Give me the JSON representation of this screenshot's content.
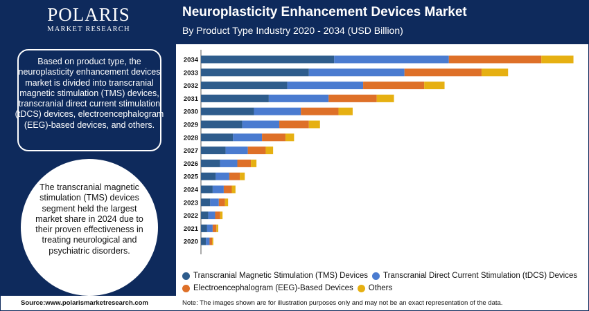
{
  "header": {
    "logo_name": "POLARIS",
    "logo_sub": "MARKET RESEARCH",
    "title": "Neuroplasticity Enhancement Devices Market",
    "subtitle": "By Product Type Industry 2020 - 2034 (USD Billion)"
  },
  "sidebar": {
    "info_text": "Based on product type, the neuroplasticity enhancement devices market is divided into transcranial magnetic stimulation (TMS) devices, transcranial direct current stimulation (tDCS) devices, electroencephalogram (EEG)-based devices, and others.",
    "highlight_text": "The transcranial magnetic stimulation (TMS) devices segment held the largest market share in 2024 due to their proven effectiveness in treating neurological and psychiatric disorders."
  },
  "footer": {
    "source": "Source:www.polarismarketresearch.com",
    "note": "Note: The images shown are for illustration purposes only and may not be an exact representation of the data."
  },
  "colors": {
    "brand": "#0e2a5c",
    "tms": "#2e5c8c",
    "tdcs": "#4a7bd0",
    "eeg": "#de7028",
    "others": "#e6b012"
  },
  "chart_data": {
    "type": "bar",
    "orientation": "horizontal",
    "stacked": true,
    "categories": [
      "2020",
      "2021",
      "2022",
      "2023",
      "2024",
      "2025",
      "2026",
      "2027",
      "2028",
      "2029",
      "2030",
      "2031",
      "2032",
      "2033",
      "2034"
    ],
    "series": [
      {
        "name": "Transcranial Magnetic Stimulation (TMS) Devices",
        "color": "#2e5c8c",
        "values": [
          0.08,
          0.1,
          0.12,
          0.15,
          0.19,
          0.24,
          0.31,
          0.4,
          0.52,
          0.67,
          0.86,
          1.1,
          1.4,
          1.75,
          2.16
        ]
      },
      {
        "name": "Transcranial Direct Current Stimulation (tDCS) Devices",
        "color": "#4a7bd0",
        "values": [
          0.06,
          0.09,
          0.11,
          0.14,
          0.18,
          0.22,
          0.28,
          0.36,
          0.47,
          0.6,
          0.76,
          0.97,
          1.23,
          1.55,
          1.86
        ]
      },
      {
        "name": "Electroencephalogram (EEG)-Based Devices",
        "color": "#de7028",
        "values": [
          0.04,
          0.06,
          0.08,
          0.1,
          0.13,
          0.17,
          0.22,
          0.29,
          0.38,
          0.48,
          0.61,
          0.78,
          0.99,
          1.25,
          1.5
        ]
      },
      {
        "name": "Others",
        "color": "#e6b012",
        "values": [
          0.02,
          0.03,
          0.04,
          0.05,
          0.06,
          0.08,
          0.09,
          0.12,
          0.14,
          0.18,
          0.23,
          0.28,
          0.33,
          0.43,
          0.52
        ]
      }
    ],
    "legend_position": "bottom",
    "grid": false
  }
}
